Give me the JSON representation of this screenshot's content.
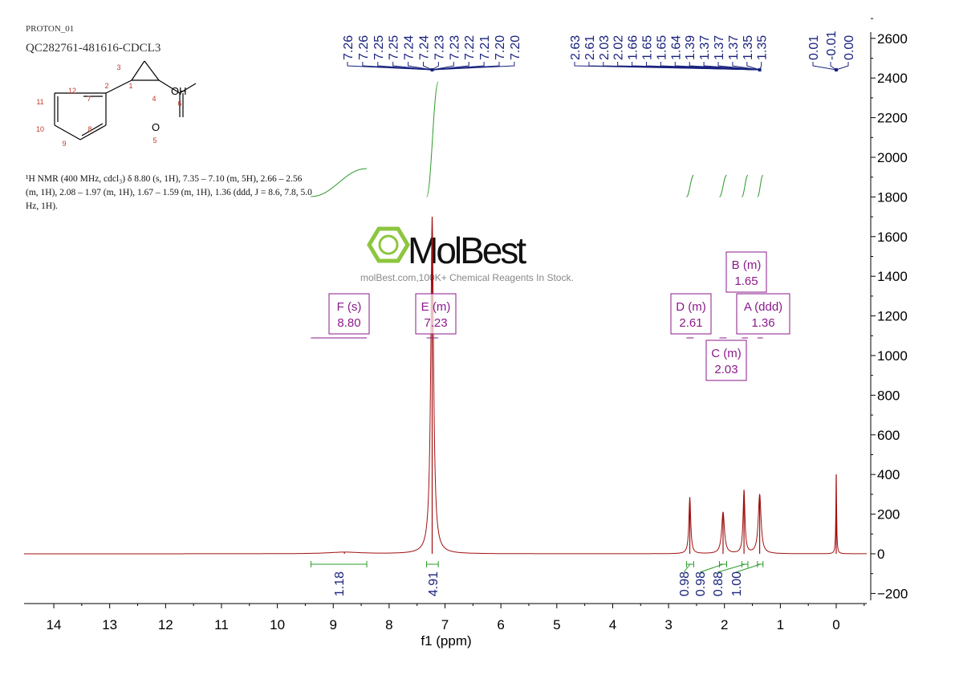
{
  "header": {
    "experiment": "PROTON_01",
    "sample": "QC282761-481616-CDCL3"
  },
  "description": "¹H NMR (400 MHz, cdcl₃) δ 8.80 (s, 1H), 7.35 – 7.10 (m, 5H), 2.66 – 2.56 (m, 1H), 2.08 – 1.97 (m, 1H), 1.67 – 1.59 (m, 1H), 1.36 (ddd, J = 8.6, 7.8, 5.0 Hz, 1H).",
  "structure": {
    "atom_labels": [
      "1",
      "2",
      "3",
      "4",
      "5",
      "6",
      "7",
      "8",
      "9",
      "10",
      "11",
      "12"
    ],
    "group_label": "OH",
    "oxygen_label": "O"
  },
  "watermark": {
    "brand": "MolBest",
    "tagline": "molBest.com,100K+ Chemical Reagents In Stock.",
    "color": "#8cc63f"
  },
  "colors": {
    "spectrum": "#a01010",
    "integral": "#2a9a2a",
    "peak_labels": "#1a237e",
    "multiplets": "#8b1a8b"
  },
  "chart_data": {
    "type": "line",
    "xlabel": "f1 (ppm)",
    "xlim": [
      14.5,
      -0.55
    ],
    "ylim": [
      -220,
      2650
    ],
    "x_ticks": [
      14,
      13,
      12,
      11,
      10,
      9,
      8,
      7,
      6,
      5,
      4,
      3,
      2,
      1,
      0
    ],
    "y_ticks": [
      -200,
      0,
      200,
      400,
      600,
      800,
      1000,
      1200,
      1400,
      1600,
      1800,
      2000,
      2200,
      2400,
      2600
    ],
    "peaks": [
      {
        "ppm": 8.8,
        "height": 8,
        "width": 0.35
      },
      {
        "ppm": 7.23,
        "height": 1700,
        "width": 0.03
      },
      {
        "ppm": 2.62,
        "height": 285,
        "width": 0.02
      },
      {
        "ppm": 2.025,
        "height": 210,
        "width": 0.03
      },
      {
        "ppm": 1.65,
        "height": 320,
        "width": 0.02
      },
      {
        "ppm": 1.37,
        "height": 300,
        "width": 0.03
      },
      {
        "ppm": 0.0,
        "height": 400,
        "width": 0.008
      }
    ],
    "peak_labels_group1": [
      "7.26",
      "7.26",
      "7.25",
      "7.25",
      "7.24",
      "7.24",
      "7.23",
      "7.23",
      "7.22",
      "7.21",
      "7.20",
      "7.20"
    ],
    "peak_labels_group2": [
      "2.63",
      "2.61",
      "2.03",
      "2.02",
      "1.66",
      "1.65",
      "1.65",
      "1.64",
      "1.39",
      "1.37",
      "1.37",
      "1.37",
      "1.35",
      "1.35",
      "0.01",
      "-0.01",
      "0.00"
    ],
    "integrals": [
      {
        "from": 9.4,
        "to": 8.4,
        "value": "1.18"
      },
      {
        "from": 7.33,
        "to": 7.12,
        "value": "4.91"
      },
      {
        "from": 2.68,
        "to": 2.55,
        "value": "0.98"
      },
      {
        "from": 2.09,
        "to": 1.96,
        "value": "0.98"
      },
      {
        "from": 1.69,
        "to": 1.58,
        "value": "0.88"
      },
      {
        "from": 1.41,
        "to": 1.31,
        "value": "1.00"
      }
    ],
    "multiplets": [
      {
        "name": "F (s)",
        "shift": "8.80",
        "from": 9.4,
        "to": 8.4
      },
      {
        "name": "E (m)",
        "shift": "7.23",
        "from": 7.33,
        "to": 7.12
      },
      {
        "name": "D (m)",
        "shift": "2.61",
        "from": 2.68,
        "to": 2.55
      },
      {
        "name": "C (m)",
        "shift": "2.03",
        "from": 2.09,
        "to": 1.96
      },
      {
        "name": "B (m)",
        "shift": "1.65",
        "from": 1.69,
        "to": 1.58
      },
      {
        "name": "A (ddd)",
        "shift": "1.36",
        "from": 1.41,
        "to": 1.31
      }
    ]
  }
}
